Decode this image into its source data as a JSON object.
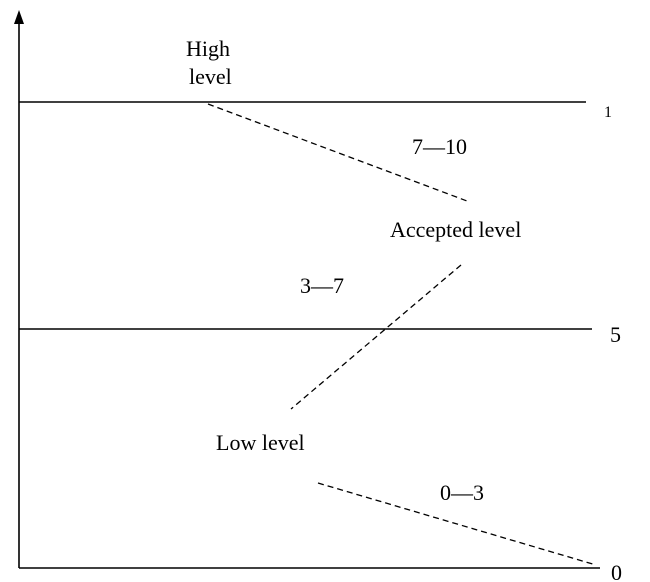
{
  "levels": {
    "high": {
      "line1": "High",
      "line2": "level"
    },
    "accepted": "Accepted level",
    "low": "Low level"
  },
  "ranges": {
    "upper": "7—10",
    "middle": "3—7",
    "lower": "0—3"
  },
  "axis_marks": {
    "top": "1",
    "middle": "5",
    "bottom": "0"
  },
  "colors": {
    "ink": "#000000",
    "background": "#ffffff"
  }
}
